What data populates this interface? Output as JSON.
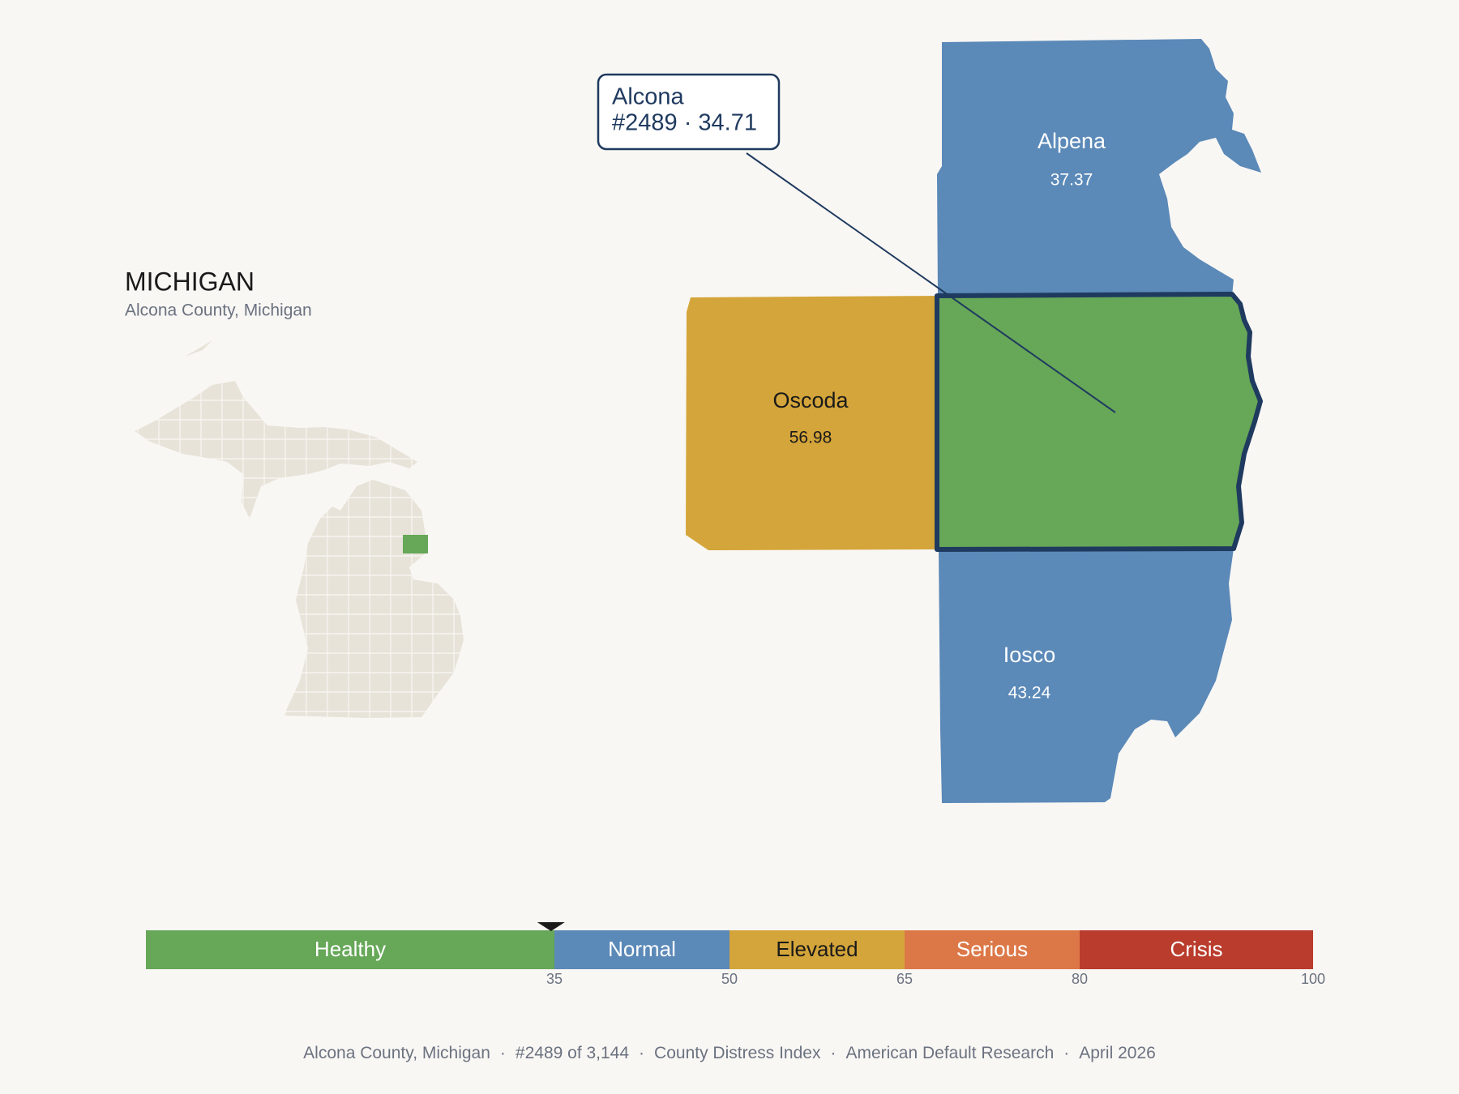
{
  "header": {
    "title": "MICHIGAN",
    "subtitle": "Alcona County, Michigan"
  },
  "map": {
    "counties": [
      {
        "name": "Alpena",
        "score": 37.37,
        "color": "#5b89b8"
      },
      {
        "name": "Oscoda",
        "score": 56.98,
        "color": "#d4a53a"
      },
      {
        "name": "Iosco",
        "score": 43.24,
        "color": "#5b89b8"
      }
    ],
    "focus": {
      "color": "#66a758"
    },
    "callout": {
      "name": "Alcona",
      "text": "#2489 · 34.71"
    }
  },
  "scale": {
    "xlim": [
      0,
      100
    ],
    "marker": 34.71,
    "segments": [
      {
        "label": "Healthy",
        "color": "#66a758"
      },
      {
        "label": "Normal",
        "color": "#5b89b8"
      },
      {
        "label": "Elevated",
        "color": "#d4a53a"
      },
      {
        "label": "Serious",
        "color": "#dc7848"
      },
      {
        "label": "Crisis",
        "color": "#b93c2c"
      }
    ],
    "ticks": [
      35,
      50,
      65,
      80,
      100
    ]
  },
  "footer": {
    "separator": "·",
    "items": [
      "Alcona County, Michigan",
      "#2489 of 3,144",
      "County Distress Index",
      "American Default Research",
      "April 2026"
    ]
  }
}
